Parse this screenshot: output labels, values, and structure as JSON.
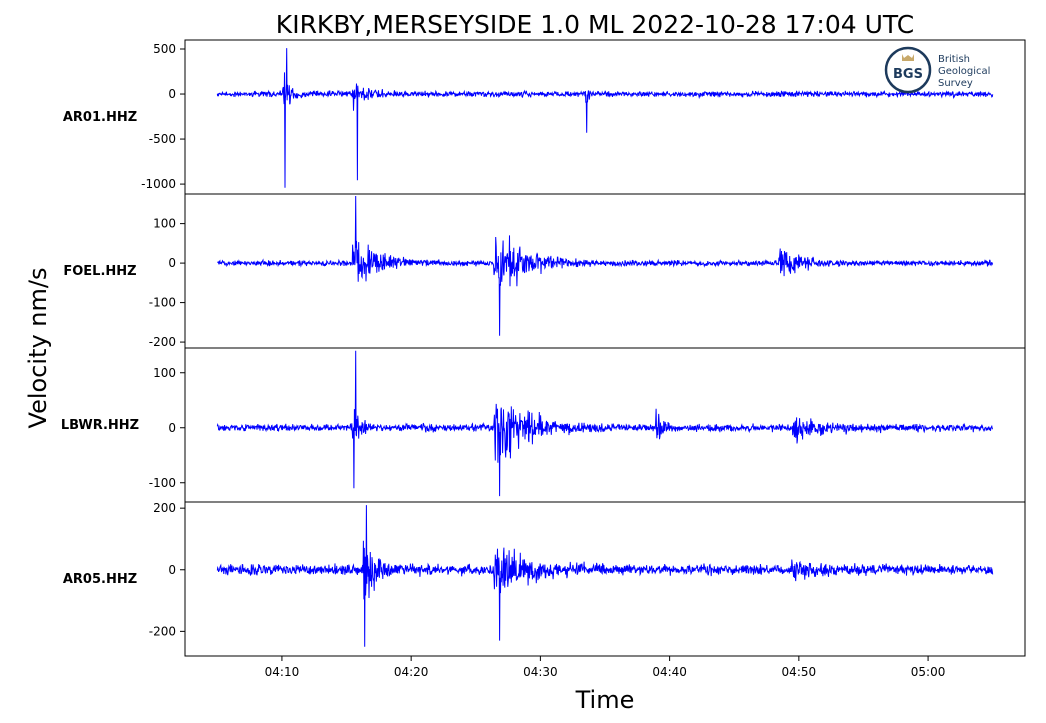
{
  "chart_data": {
    "type": "line",
    "title": "KIRKBY,MERSEYSIDE 1.0 ML   2022-10-28 17:04 UTC",
    "xlabel": "Time",
    "ylabel": "Velocity nm/s",
    "grid": false,
    "x_range": [
      "04:02:30",
      "05:07:30"
    ],
    "x_ticks": [
      "04:10",
      "04:20",
      "04:30",
      "04:40",
      "04:50",
      "05:00"
    ],
    "trace_window": [
      "04:05",
      "05:05"
    ],
    "line_color": "#0000ff",
    "series": [
      {
        "name": "AR01.HHZ",
        "ylim": [
          -1110,
          600
        ],
        "y_ticks": [
          500,
          0,
          -500,
          -1000
        ],
        "y_tick_labels": [
          "500",
          "0",
          "-500",
          "-1000"
        ],
        "noise": 45,
        "events": [
          {
            "t": "04:10:10",
            "amp": 420,
            "decay": 0.4,
            "spike": -1040
          },
          {
            "t": "04:15:30",
            "amp": 220,
            "decay": 1.0
          },
          {
            "t": "04:33:30",
            "amp": 180,
            "decay": 0.2,
            "spike": -430
          }
        ],
        "peak_min": -1040,
        "peak_max": 510
      },
      {
        "name": "FOEL.HHZ",
        "ylim": [
          -215,
          175
        ],
        "y_ticks": [
          100,
          0,
          -100,
          -200
        ],
        "y_tick_labels": [
          "100",
          "0",
          "-100",
          "-200"
        ],
        "noise": 10,
        "events": [
          {
            "t": "04:15:30",
            "amp": 110,
            "decay": 1.6
          },
          {
            "t": "04:26:30",
            "amp": 170,
            "decay": 1.8
          },
          {
            "t": "04:48:30",
            "amp": 65,
            "decay": 1.5
          }
        ],
        "peak_min": -200,
        "peak_max": 170
      },
      {
        "name": "LBWR.HHZ",
        "ylim": [
          -135,
          145
        ],
        "y_ticks": [
          100,
          0,
          -100
        ],
        "y_tick_labels": [
          "100",
          "0",
          "-100"
        ],
        "noise": 10,
        "events": [
          {
            "t": "04:15:30",
            "amp": 60,
            "decay": 0.5,
            "spike": -110
          },
          {
            "t": "04:26:30",
            "amp": 125,
            "decay": 2.0
          },
          {
            "t": "04:39:00",
            "amp": 50,
            "decay": 0.3
          },
          {
            "t": "04:49:30",
            "amp": 45,
            "decay": 1.6
          }
        ],
        "peak_min": -135,
        "peak_max": 140
      },
      {
        "name": "AR05.HHZ",
        "ylim": [
          -280,
          220
        ],
        "y_ticks": [
          200,
          0,
          -200
        ],
        "y_tick_labels": [
          "200",
          "0",
          "-200"
        ],
        "noise": 25,
        "events": [
          {
            "t": "04:16:20",
            "amp": 190,
            "decay": 0.9,
            "spike": -250
          },
          {
            "t": "04:26:30",
            "amp": 130,
            "decay": 2.2
          },
          {
            "t": "04:49:30",
            "amp": 50,
            "decay": 1.5
          }
        ],
        "peak_min": -250,
        "peak_max": 210
      }
    ]
  },
  "logo": {
    "name": "bgs-logo",
    "monogram": "BGS",
    "line1": "British",
    "line2": "Geological",
    "line3": "Survey"
  }
}
